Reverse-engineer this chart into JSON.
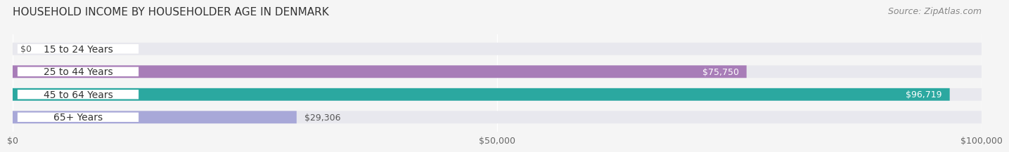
{
  "title": "HOUSEHOLD INCOME BY HOUSEHOLDER AGE IN DENMARK",
  "source": "Source: ZipAtlas.com",
  "categories": [
    "15 to 24 Years",
    "25 to 44 Years",
    "45 to 64 Years",
    "65+ Years"
  ],
  "values": [
    0,
    75750,
    96719,
    29306
  ],
  "bar_colors": [
    "#a8b8e8",
    "#a87db8",
    "#2ba8a0",
    "#a8a8d8"
  ],
  "label_colors": [
    "#555555",
    "#ffffff",
    "#ffffff",
    "#555555"
  ],
  "x_max": 100000,
  "x_ticks": [
    0,
    50000,
    100000
  ],
  "x_tick_labels": [
    "$0",
    "$50,000",
    "$100,000"
  ],
  "value_labels": [
    "$0",
    "$75,750",
    "$96,719",
    "$29,306"
  ],
  "background_color": "#f5f5f5",
  "bar_background_color": "#e8e8ee",
  "title_fontsize": 11,
  "source_fontsize": 9,
  "label_fontsize": 10,
  "value_fontsize": 9
}
